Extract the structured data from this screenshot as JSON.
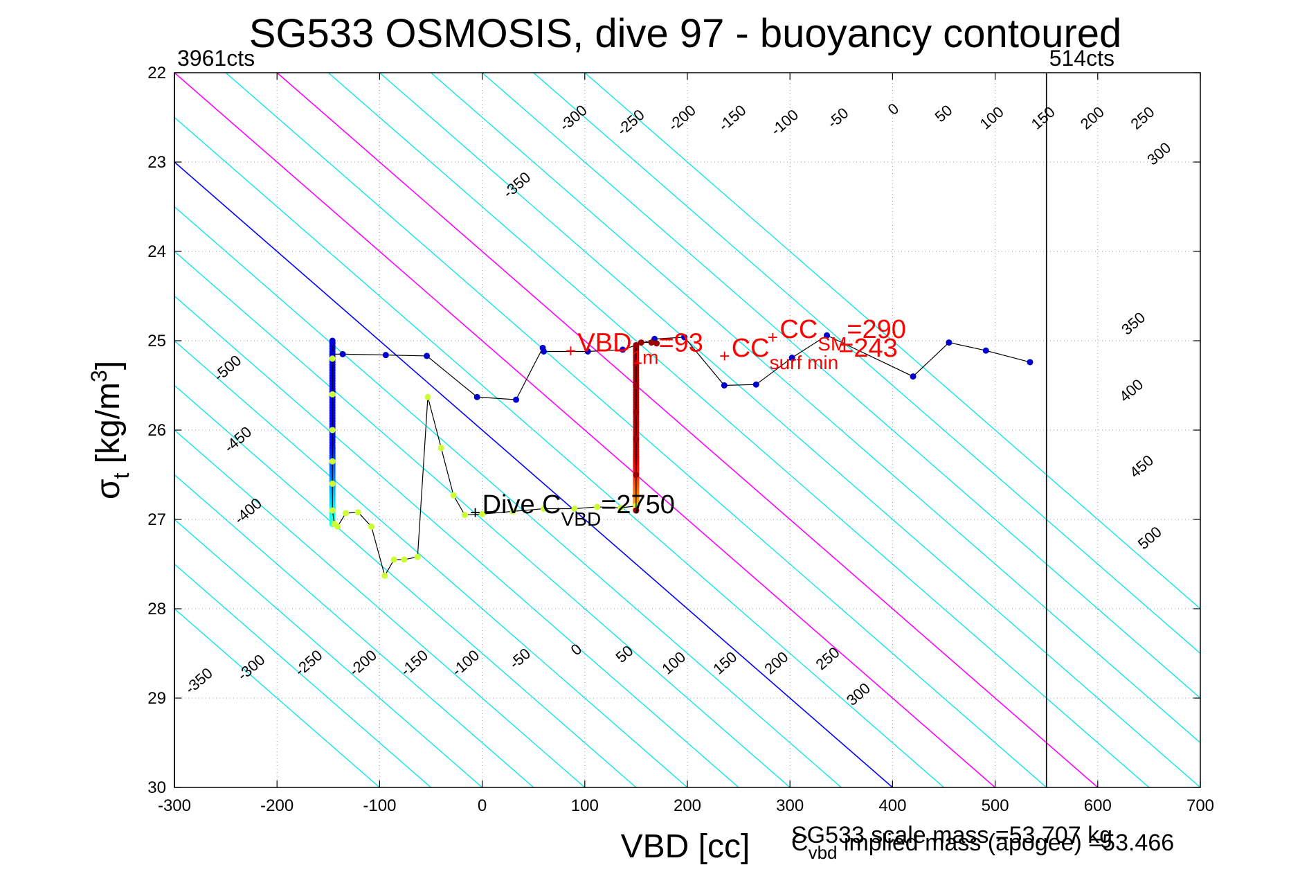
{
  "chart_data": {
    "type": "scatter",
    "title": "SG533 OSMOSIS, dive 97 - buoyancy contoured",
    "xlabel": "VBD [cc]",
    "ylabel": {
      "base": "σ",
      "sub": "t",
      "rest": " [kg/m",
      "sup": "3",
      "close": "]"
    },
    "xlim": [
      -300,
      700
    ],
    "ylim": [
      22,
      30
    ],
    "y_reversed": true,
    "grid": true,
    "x_ticks": [
      "-300",
      "-200",
      "-100",
      "0",
      "100",
      "200",
      "300",
      "400",
      "500",
      "600",
      "700"
    ],
    "x_tick_values": [
      -300,
      -200,
      -100,
      0,
      100,
      200,
      300,
      400,
      500,
      600,
      700
    ],
    "y_ticks": [
      "22",
      "23",
      "24",
      "25",
      "26",
      "27",
      "28",
      "29",
      "30"
    ],
    "y_tick_values": [
      22,
      23,
      24,
      25,
      26,
      27,
      28,
      29,
      30
    ],
    "vbd_limits": [
      {
        "label": "3961cts",
        "x": -300
      },
      {
        "label": "514cts",
        "x": 550
      }
    ],
    "buoyancy_contours": {
      "levels": [
        -500,
        -450,
        -400,
        -350,
        -300,
        -250,
        -200,
        -150,
        -100,
        -50,
        0,
        50,
        100,
        150,
        200,
        250,
        300,
        350,
        400,
        450,
        500
      ],
      "upper_labels": [
        {
          "text": "-350",
          "at": [
            37,
            23.3
          ]
        },
        {
          "text": "-300",
          "at": [
            92,
            22.55
          ]
        },
        {
          "text": "-250",
          "at": [
            148,
            22.6
          ]
        },
        {
          "text": "-200",
          "at": [
            198,
            22.55
          ]
        },
        {
          "text": "-150",
          "at": [
            247,
            22.55
          ]
        },
        {
          "text": "-100",
          "at": [
            298,
            22.6
          ]
        },
        {
          "text": "-50",
          "at": [
            350,
            22.55
          ]
        },
        {
          "text": "0",
          "at": [
            404,
            22.45
          ]
        },
        {
          "text": "50",
          "at": [
            453,
            22.5
          ]
        },
        {
          "text": "100",
          "at": [
            500,
            22.55
          ]
        },
        {
          "text": "150",
          "at": [
            550,
            22.55
          ]
        },
        {
          "text": "200",
          "at": [
            598,
            22.55
          ]
        },
        {
          "text": "250",
          "at": [
            647,
            22.55
          ]
        },
        {
          "text": "300",
          "at": [
            663,
            22.95
          ]
        },
        {
          "text": "350",
          "at": [
            638,
            24.85
          ]
        },
        {
          "text": "400",
          "at": [
            636,
            25.6
          ]
        },
        {
          "text": "450",
          "at": [
            646,
            26.45
          ]
        },
        {
          "text": "500",
          "at": [
            654,
            27.25
          ]
        }
      ],
      "lower_labels": [
        {
          "text": "-500",
          "at": [
            -245,
            25.35
          ]
        },
        {
          "text": "-450",
          "at": [
            -235,
            26.15
          ]
        },
        {
          "text": "-400",
          "at": [
            -225,
            26.95
          ]
        },
        {
          "text": "-350",
          "at": [
            -273,
            28.85
          ]
        },
        {
          "text": "-300",
          "at": [
            -222,
            28.7
          ]
        },
        {
          "text": "-250",
          "at": [
            -166,
            28.65
          ]
        },
        {
          "text": "-200",
          "at": [
            -113,
            28.65
          ]
        },
        {
          "text": "-150",
          "at": [
            -63,
            28.65
          ]
        },
        {
          "text": "-100",
          "at": [
            -13,
            28.65
          ]
        },
        {
          "text": "-50",
          "at": [
            40,
            28.6
          ]
        },
        {
          "text": "0",
          "at": [
            95,
            28.5
          ]
        },
        {
          "text": "50",
          "at": [
            142,
            28.55
          ]
        },
        {
          "text": "100",
          "at": [
            190,
            28.65
          ]
        },
        {
          "text": "150",
          "at": [
            240,
            28.65
          ]
        },
        {
          "text": "200",
          "at": [
            290,
            28.65
          ]
        },
        {
          "text": "250",
          "at": [
            340,
            28.6
          ]
        },
        {
          "text": "300",
          "at": [
            370,
            29.0
          ]
        }
      ]
    },
    "series": [
      {
        "type": "line",
        "x": [
          -146,
          -146,
          -136,
          -94,
          -54,
          -5,
          33,
          59,
          60,
          103,
          137,
          168,
          197,
          236,
          267,
          302,
          336,
          420,
          455,
          491,
          534
        ],
        "y": [
          25.02,
          25.15,
          25.15,
          25.16,
          25.17,
          25.63,
          25.66,
          25.08,
          25.12,
          25.12,
          25.1,
          24.98,
          24.96,
          25.5,
          25.49,
          25.19,
          24.94,
          25.4,
          25.02,
          25.11,
          25.24
        ],
        "color": "#0000cc"
      },
      {
        "type": "line",
        "x": [
          -146,
          -146,
          -146,
          -146,
          -146,
          -146,
          -144,
          -141,
          -133,
          -121,
          -108,
          -95,
          -86,
          -76,
          -63,
          -53,
          -40,
          -28,
          -17,
          0,
          30,
          60,
          90,
          112,
          135,
          150
        ],
        "y": [
          25.2,
          25.6,
          26.0,
          26.35,
          26.6,
          26.9,
          27.05,
          27.08,
          26.93,
          26.92,
          27.08,
          27.63,
          27.45,
          27.45,
          27.42,
          25.63,
          26.2,
          26.73,
          26.95,
          26.94,
          26.91,
          26.88,
          26.88,
          26.86,
          26.87,
          26.85
        ],
        "color": "#ccff33"
      },
      {
        "type": "line",
        "x": [
          150,
          150,
          150,
          150,
          150,
          150,
          150,
          155,
          165,
          170
        ],
        "y": [
          26.9,
          26.5,
          26.1,
          25.8,
          25.5,
          25.25,
          25.05,
          25.02,
          25.02,
          25.03
        ],
        "color": "#990000"
      }
    ],
    "annotations": [
      {
        "text": "VBD",
        "sub": "1m",
        "value": "=93",
        "color": "#ff0000",
        "at": [
          93,
          25.12
        ]
      },
      {
        "text": "CC",
        "sub": "SM",
        "value": "=290",
        "color": "#ff0000",
        "at": [
          290,
          24.97
        ]
      },
      {
        "text": "CC",
        "sub": "surf min",
        "value": "=243",
        "color": "#ff0000",
        "at": [
          243,
          25.18
        ]
      },
      {
        "text": "Dive C",
        "sub": "VBD",
        "value": "=2750",
        "color": "#000000",
        "at": [
          0,
          26.93
        ]
      }
    ],
    "footer": {
      "scale_mass": "SG533 scale mass =53.707 kg",
      "implied_mass": {
        "base": "C",
        "sub": "vbd",
        "rest": " implied mass (apogee) =53.466"
      }
    }
  }
}
